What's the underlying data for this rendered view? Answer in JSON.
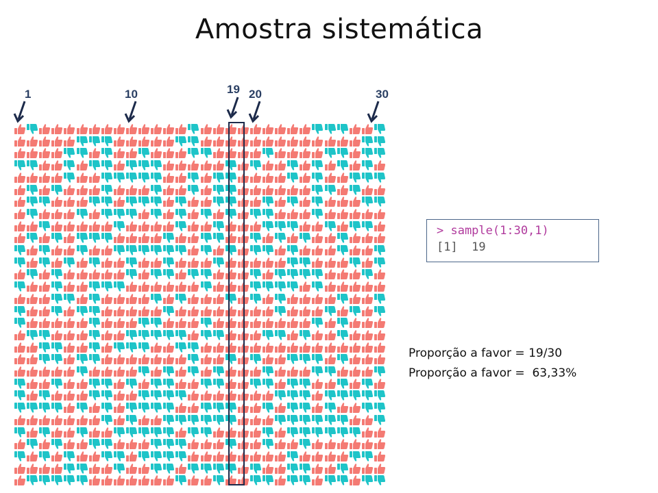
{
  "title": "Amostra sistemática",
  "column_labels": {
    "c1": "1",
    "c10": "10",
    "c19": "19",
    "c20": "20",
    "c30": "30"
  },
  "grid": {
    "columns": 30,
    "rows": 30,
    "selected_column": 19,
    "colors": {
      "favor": "#f47a73",
      "against": "#1ec4c8"
    },
    "icon_names": {
      "favor": "thumbs-up-icon",
      "against": "thumbs-down-icon"
    }
  },
  "code": {
    "command": "> sample(1:30,1)",
    "output": "[1]  19"
  },
  "results": {
    "line1": "Proporção a favor = 19/30",
    "line2": "Proporção a favor =  63,33%"
  },
  "colors": {
    "label": "#2a3f63",
    "arrow": "#1c2a4a",
    "command": "#b03a9d"
  }
}
